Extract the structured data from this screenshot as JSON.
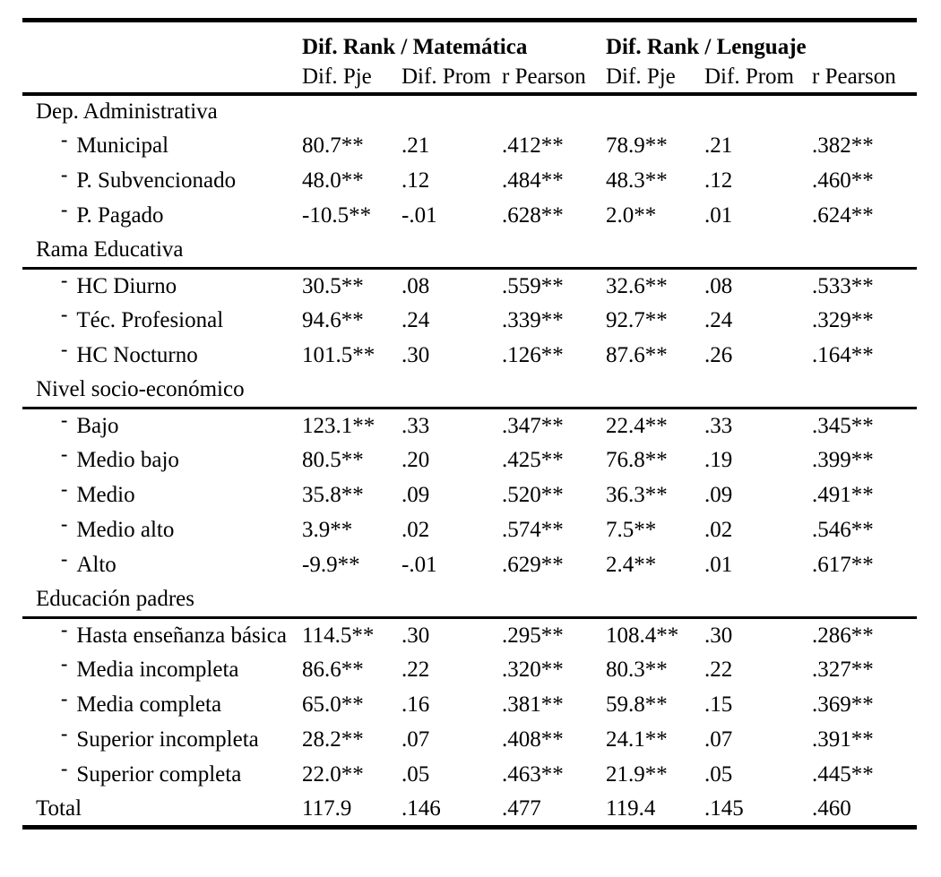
{
  "table": {
    "col_groups": [
      {
        "label": "Dif. Rank / Matemática"
      },
      {
        "label": "Dif. Rank / Lenguaje"
      }
    ],
    "sub_headers": [
      "Dif. Pje",
      "Dif. Prom",
      "r Pearson",
      "Dif. Pje",
      "Dif. Prom",
      "r Pearson"
    ],
    "bullet": "-",
    "sections": [
      {
        "header": "Dep. Administrativa",
        "rule_below": false,
        "rows": [
          {
            "label": "Municipal",
            "values": [
              "80.7**",
              ".21",
              ".412**",
              "78.9**",
              ".21",
              ".382**"
            ]
          },
          {
            "label": "P. Subvencionado",
            "values": [
              "48.0**",
              ".12",
              ".484**",
              "48.3**",
              ".12",
              ".460**"
            ]
          },
          {
            "label": "P. Pagado",
            "values": [
              "-10.5**",
              "-.01",
              ".628**",
              "2.0**",
              ".01",
              ".624**"
            ]
          }
        ]
      },
      {
        "header": "Rama Educativa",
        "rule_below": true,
        "rows": [
          {
            "label": "HC Diurno",
            "values": [
              "30.5**",
              ".08",
              ".559**",
              "32.6**",
              ".08",
              ".533**"
            ]
          },
          {
            "label": "Téc. Profesional",
            "values": [
              "94.6**",
              ".24",
              ".339**",
              "92.7**",
              ".24",
              ".329**"
            ]
          },
          {
            "label": "HC Nocturno",
            "values": [
              "101.5**",
              ".30",
              ".126**",
              "87.6**",
              ".26",
              ".164**"
            ]
          }
        ]
      },
      {
        "header": "Nivel socio-económico",
        "rule_below": true,
        "rows": [
          {
            "label": "Bajo",
            "values": [
              "123.1**",
              ".33",
              ".347**",
              "22.4**",
              ".33",
              ".345**"
            ]
          },
          {
            "label": "Medio bajo",
            "values": [
              "80.5**",
              ".20",
              ".425**",
              "76.8**",
              ".19",
              ".399**"
            ]
          },
          {
            "label": "Medio",
            "values": [
              "35.8**",
              ".09",
              ".520**",
              "36.3**",
              ".09",
              ".491**"
            ]
          },
          {
            "label": "Medio alto",
            "values": [
              "3.9**",
              ".02",
              ".574**",
              "7.5**",
              ".02",
              ".546**"
            ]
          },
          {
            "label": "Alto",
            "values": [
              "-9.9**",
              "-.01",
              ".629**",
              "2.4**",
              ".01",
              ".617**"
            ]
          }
        ]
      },
      {
        "header": "Educación padres",
        "rule_below": true,
        "rows": [
          {
            "label": "Hasta enseñanza básica",
            "values": [
              "114.5**",
              ".30",
              ".295**",
              "108.4**",
              ".30",
              ".286**"
            ]
          },
          {
            "label": "Media incompleta",
            "values": [
              "86.6**",
              ".22",
              ".320**",
              "80.3**",
              ".22",
              ".327**"
            ]
          },
          {
            "label": "Media completa",
            "values": [
              "65.0**",
              ".16",
              ".381**",
              "59.8**",
              ".15",
              ".369**"
            ]
          },
          {
            "label": "Superior incompleta",
            "values": [
              "28.2**",
              ".07",
              ".408**",
              "24.1**",
              ".07",
              ".391**"
            ]
          },
          {
            "label": "Superior completa",
            "values": [
              "22.0**",
              ".05",
              ".463**",
              "21.9**",
              ".05",
              ".445**"
            ]
          }
        ]
      }
    ],
    "total_row": {
      "label": "Total",
      "values": [
        "117.9",
        ".146",
        ".477",
        "119.4",
        ".145",
        ".460"
      ]
    }
  }
}
